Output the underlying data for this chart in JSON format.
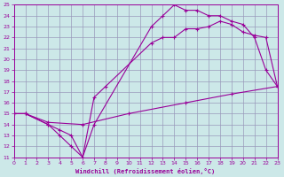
{
  "bg_color": "#cce8e8",
  "grid_color": "#9999bb",
  "line_color": "#990099",
  "xlim": [
    0,
    23
  ],
  "ylim": [
    11,
    25
  ],
  "xticks": [
    0,
    1,
    2,
    3,
    4,
    5,
    6,
    7,
    8,
    9,
    10,
    11,
    12,
    13,
    14,
    15,
    16,
    17,
    18,
    19,
    20,
    21,
    22,
    23
  ],
  "yticks": [
    11,
    12,
    13,
    14,
    15,
    16,
    17,
    18,
    19,
    20,
    21,
    22,
    23,
    24,
    25
  ],
  "xlabel": "Windchill (Refroidissement éolien,°C)",
  "curve1_x": [
    0,
    1,
    3,
    4,
    5,
    6,
    7,
    12,
    13,
    14,
    15,
    16,
    17,
    18,
    19,
    20,
    21,
    22,
    23
  ],
  "curve1_y": [
    15.0,
    15.0,
    14.0,
    13.0,
    12.0,
    11.0,
    14.0,
    23.0,
    24.0,
    25.0,
    24.5,
    24.5,
    24.0,
    24.0,
    23.5,
    23.2,
    22.0,
    19.0,
    17.5
  ],
  "curve2_x": [
    0,
    1,
    3,
    4,
    5,
    6,
    7,
    8,
    12,
    13,
    14,
    15,
    16,
    17,
    18,
    19,
    20,
    21,
    22,
    23
  ],
  "curve2_y": [
    15.0,
    15.0,
    14.0,
    13.5,
    13.0,
    11.0,
    16.5,
    17.5,
    21.5,
    22.0,
    22.0,
    22.8,
    22.8,
    23.0,
    23.5,
    23.2,
    22.5,
    22.2,
    22.0,
    17.5
  ],
  "curve3_x": [
    0,
    1,
    3,
    6,
    10,
    15,
    19,
    23
  ],
  "curve3_y": [
    15.0,
    15.0,
    14.2,
    14.0,
    15.0,
    16.0,
    16.8,
    17.5
  ]
}
